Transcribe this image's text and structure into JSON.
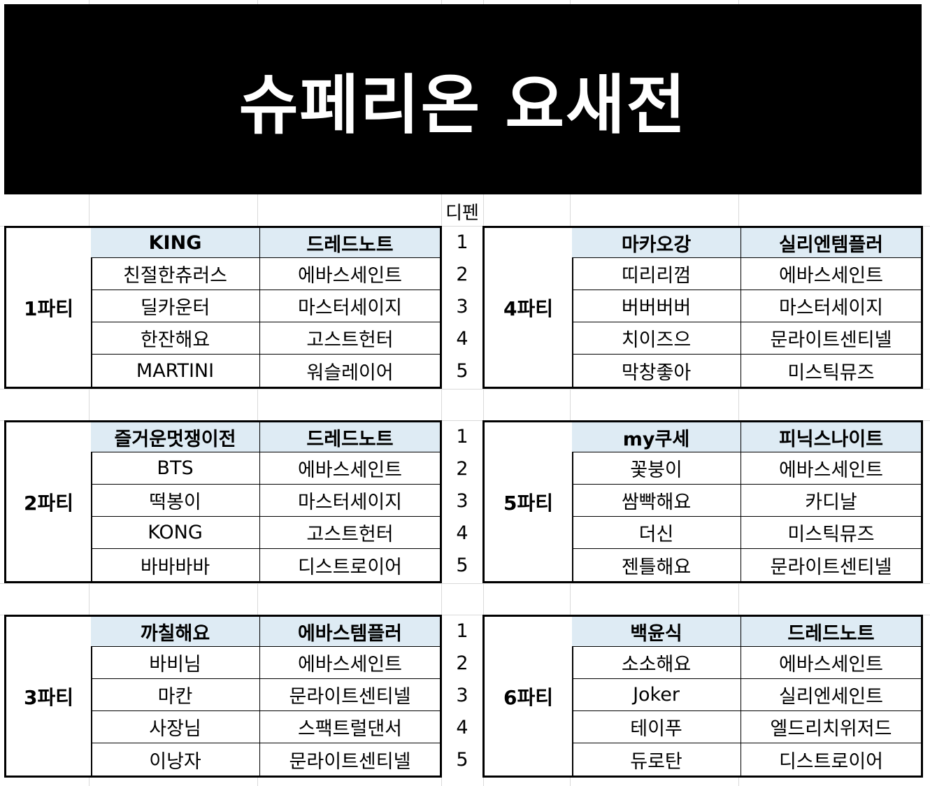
{
  "title": "슈페리온 요새전",
  "dipen_header": "디펜",
  "parties_left": [
    {
      "label": "1파티",
      "rows": [
        [
          "KING",
          "드레드노트"
        ],
        [
          "친절한츄러스",
          "에바스세인트"
        ],
        [
          "딜카운터",
          "마스터세이지"
        ],
        [
          "한잔해요",
          "고스트헌터"
        ],
        [
          "MARTINI",
          "워슬레이어"
        ]
      ]
    },
    {
      "label": "2파티",
      "rows": [
        [
          "즐거운멋쟁이전",
          "드레드노트"
        ],
        [
          "BTS",
          "에바스세인트"
        ],
        [
          "떡봉이",
          "마스터세이지"
        ],
        [
          "KONG",
          "고스트헌터"
        ],
        [
          "바바바바",
          "디스트로이어"
        ]
      ]
    },
    {
      "label": "3파티",
      "rows": [
        [
          "까칠해요",
          "에바스템플러"
        ],
        [
          "바비님",
          "에바스세인트"
        ],
        [
          "마칸",
          "문라이트센티넬"
        ],
        [
          "사장님",
          "스팩트럴댄서"
        ],
        [
          "이낭자",
          "문라이트센티넬"
        ]
      ]
    }
  ],
  "parties_right": [
    {
      "label": "4파티",
      "rows": [
        [
          "마카오강",
          "실리엔템플러"
        ],
        [
          "띠리리껌",
          "에바스세인트"
        ],
        [
          "버버버버",
          "마스터세이지"
        ],
        [
          "치이즈으",
          "문라이트센티넬"
        ],
        [
          "막창좋아",
          "미스틱뮤즈"
        ]
      ]
    },
    {
      "label": "5파티",
      "rows": [
        [
          "my쿠세",
          "피닉스나이트"
        ],
        [
          "꽃붕이",
          "에바스세인트"
        ],
        [
          "쌈빡해요",
          "카디날"
        ],
        [
          "더신",
          "미스틱뮤즈"
        ],
        [
          "젠틀해요",
          "문라이트센티넬"
        ]
      ]
    },
    {
      "label": "6파티",
      "rows": [
        [
          "백윤식",
          "드레드노트"
        ],
        [
          "소소해요",
          "에바스세인트"
        ],
        [
          "Joker",
          "실리엔세인트"
        ],
        [
          "테이푸",
          "엘드리치위저드"
        ],
        [
          "듀로탄",
          "디스트로이어"
        ]
      ]
    }
  ],
  "numbers": [
    "1",
    "2",
    "3",
    "4",
    "5"
  ]
}
